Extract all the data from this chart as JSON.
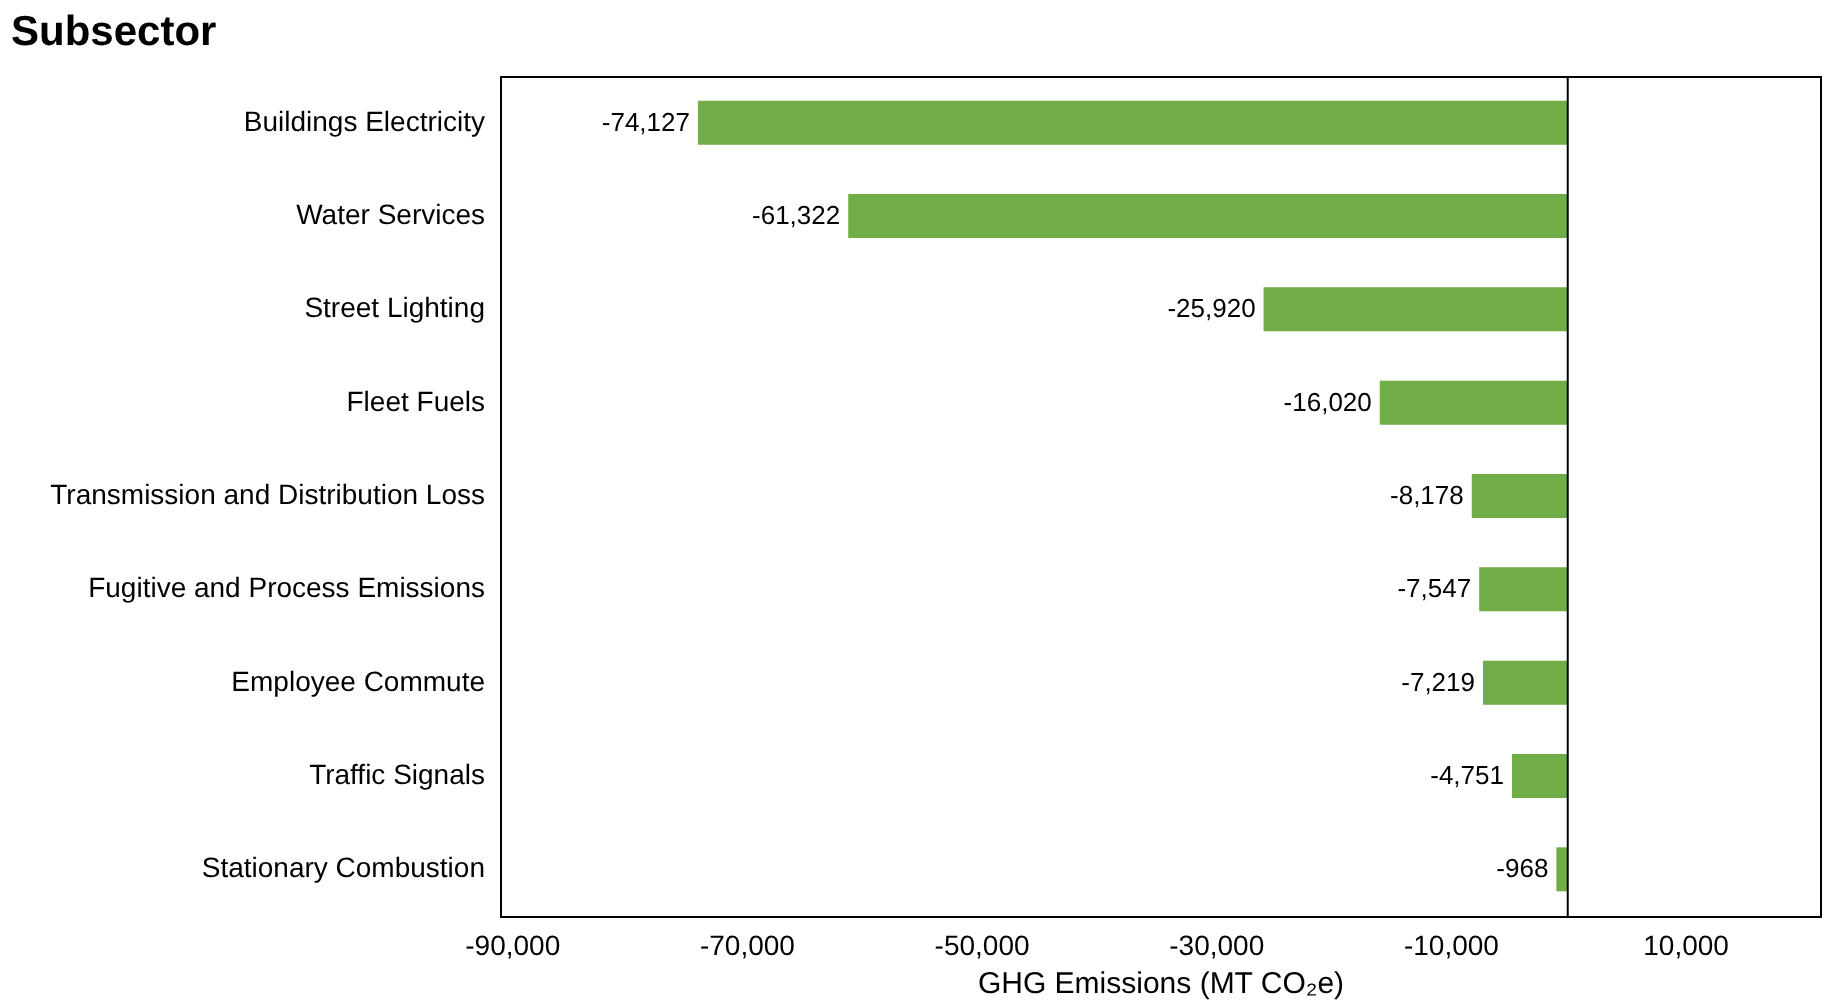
{
  "chart_data": {
    "type": "bar",
    "orientation": "horizontal",
    "ylabel": "Subsector",
    "xlabel": "GHG Emissions (MT CO₂e)",
    "categories": [
      "Buildings Electricity",
      "Water Services",
      "Street Lighting",
      "Fleet Fuels",
      "Transmission and Distribution Loss",
      "Fugitive and Process Emissions",
      "Employee Commute",
      "Traffic Signals",
      "Stationary Combustion"
    ],
    "values": [
      -74127,
      -61322,
      -25920,
      -16020,
      -8178,
      -7547,
      -7219,
      -4751,
      -968
    ],
    "value_labels": [
      "-74,127",
      "-61,322",
      "-25,920",
      "-16,020",
      "-8,178",
      "-7,547",
      "-7,219",
      "-4,751",
      "-968"
    ],
    "color": "#70ad47",
    "grid": false,
    "xlim": [
      -91000,
      21500
    ],
    "xticks": [
      {
        "value": -90000,
        "label": "-90,000"
      },
      {
        "value": -70000,
        "label": "-70,000"
      },
      {
        "value": -50000,
        "label": "-50,000"
      },
      {
        "value": -30000,
        "label": "-30,000"
      },
      {
        "value": -10000,
        "label": "-10,000"
      },
      {
        "value": 10000,
        "label": "10,000"
      }
    ],
    "ref_lines": [
      {
        "axis": "x",
        "value": 0,
        "color": "#000000"
      }
    ]
  }
}
